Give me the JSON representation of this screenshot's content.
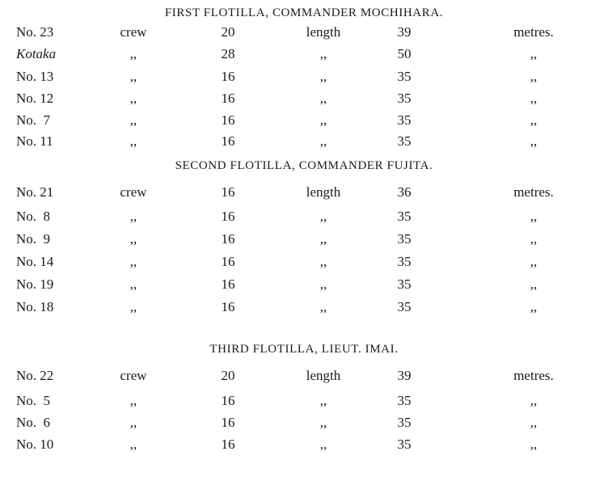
{
  "sections": [
    {
      "heading": "FIRST FLOTILLA, COMMANDER MOCHIHARA.",
      "rows": [
        {
          "name": "No. 23",
          "crew_label": "crew",
          "crew": "20",
          "length_label": "length",
          "length": "39",
          "unit": "metres."
        },
        {
          "name": "Kotaka",
          "italic": true,
          "crew_label": ",,",
          "crew": "28",
          "length_label": ",,",
          "length": "50",
          "unit": ",,"
        },
        {
          "name": "No. 13",
          "crew_label": ",,",
          "crew": "16",
          "length_label": ",,",
          "length": "35",
          "unit": ",,"
        },
        {
          "name": "No. 12",
          "crew_label": ",,",
          "crew": "16",
          "length_label": ",,",
          "length": "35",
          "unit": ",,"
        },
        {
          "name": "No.  7",
          "crew_label": ",,",
          "crew": "16",
          "length_label": ",,",
          "length": "35",
          "unit": ",,"
        },
        {
          "name": "No. 11",
          "crew_label": ",,",
          "crew": "16",
          "length_label": ",,",
          "length": "35",
          "unit": ",,"
        }
      ]
    },
    {
      "heading": "SECOND FLOTILLA, COMMANDER FUJITA.",
      "rows": [
        {
          "name": "No. 21",
          "crew_label": "crew",
          "crew": "16",
          "length_label": "length",
          "length": "36",
          "unit": "metres."
        },
        {
          "name": "No.  8",
          "crew_label": ",,",
          "crew": "16",
          "length_label": ",,",
          "length": "35",
          "unit": ",,"
        },
        {
          "name": "No.  9",
          "crew_label": ",,",
          "crew": "16",
          "length_label": ",,",
          "length": "35",
          "unit": ",,"
        },
        {
          "name": "No. 14",
          "crew_label": ",,",
          "crew": "16",
          "length_label": ",,",
          "length": "35",
          "unit": ",,"
        },
        {
          "name": "No. 19",
          "crew_label": ",,",
          "crew": "16",
          "length_label": ",,",
          "length": "35",
          "unit": ",,"
        },
        {
          "name": "No. 18",
          "crew_label": ",,",
          "crew": "16",
          "length_label": ",,",
          "length": "35",
          "unit": ",,"
        }
      ]
    },
    {
      "heading": "THIRD FLOTILLA, LIEUT. IMAI.",
      "rows": [
        {
          "name": "No. 22",
          "crew_label": "crew",
          "crew": "20",
          "length_label": "length",
          "length": "39",
          "unit": "metres."
        },
        {
          "name": "No.  5",
          "crew_label": ",,",
          "crew": "16",
          "length_label": ",,",
          "length": "35",
          "unit": ",,"
        },
        {
          "name": "No.  6",
          "crew_label": ",,",
          "crew": "16",
          "length_label": ",,",
          "length": "35",
          "unit": ",,"
        },
        {
          "name": "No. 10",
          "crew_label": ",,",
          "crew": "16",
          "length_label": ",,",
          "length": "35",
          "unit": ",,"
        }
      ]
    }
  ]
}
